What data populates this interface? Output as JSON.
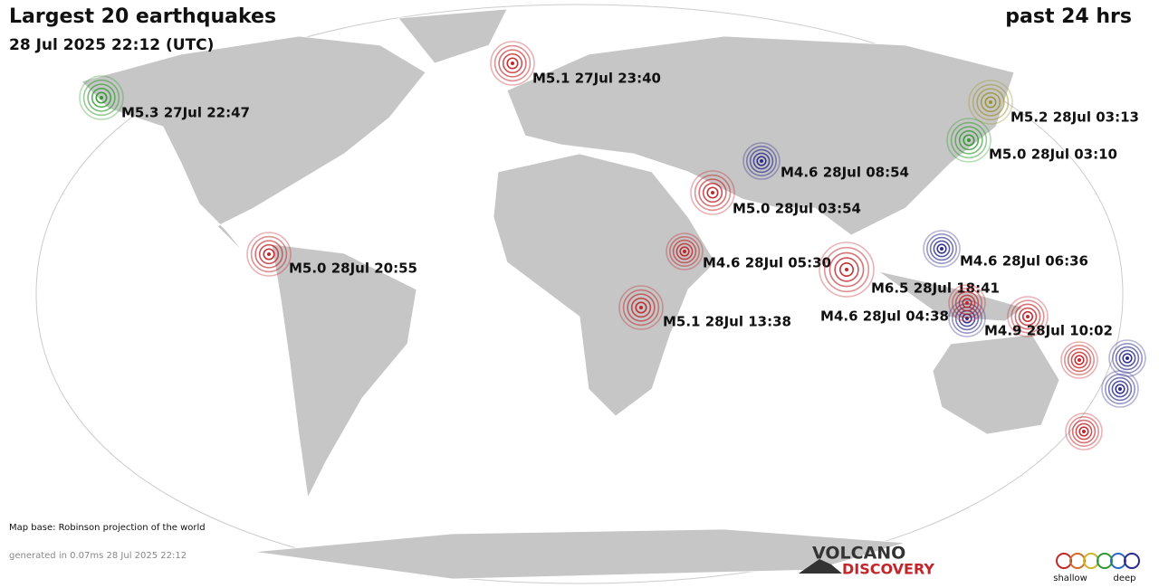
{
  "header": {
    "title": "Largest 20 earthquakes",
    "period": "past 24 hrs",
    "date": "28 Jul 2025 22:12 (UTC)"
  },
  "quakes": [
    {
      "label": "M5.1 27Jul 23:40",
      "color": "#c0262a"
    },
    {
      "label": "M5.3 27Jul 22:47",
      "color": "#2f9a2f"
    },
    {
      "label": "M5.2 28Jul 03:13",
      "color": "#9c9230"
    },
    {
      "label": "M5.0 28Jul 03:10",
      "color": "#2f9a2f"
    },
    {
      "label": "M4.6 28Jul 08:54",
      "color": "#2a2a8a"
    },
    {
      "label": "M5.0 28Jul 03:54",
      "color": "#c0262a"
    },
    {
      "label": "M5.0 28Jul 20:55",
      "color": "#c0262a"
    },
    {
      "label": "M4.6 28Jul 05:30",
      "color": "#c0262a"
    },
    {
      "label": "M4.6 28Jul 06:36",
      "color": "#2a2a8a"
    },
    {
      "label": "M6.5 28Jul 18:41",
      "color": "#c0262a"
    },
    {
      "label": "M5.1 28Jul 13:38",
      "color": "#c0262a"
    },
    {
      "label": "M4.6 28Jul 04:38",
      "color": "#c0262a"
    },
    {
      "label": "M4.9 28Jul 10:02",
      "color": "#c0262a"
    }
  ],
  "footer": {
    "map_base": "Map base: Robinson projection of the world",
    "generated": "generated in 0.07ms 28 Jul 2025 22:12"
  },
  "logo": {
    "line1": "VOLCANO",
    "line2": "DISCOVERY"
  },
  "legend": {
    "shallow": "shallow",
    "deep": "deep"
  }
}
